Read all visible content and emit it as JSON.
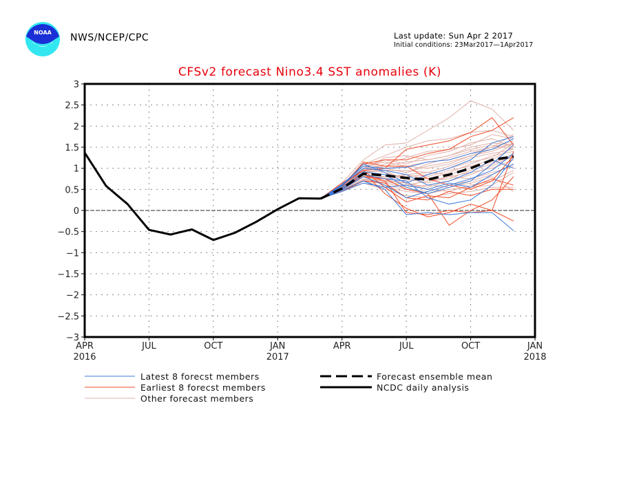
{
  "header": {
    "org": "NWS/NCEP/CPC",
    "logo_text": "NOAA",
    "last_update": "Last update: Sun Apr 2 2017",
    "initial_conditions": "Initial conditions: 23Mar2017—1Apr2017"
  },
  "colors": {
    "title": "#e8000b",
    "latest": "#3a78d8",
    "earliest": "#f04a26",
    "other": "#e0b0a8",
    "mean": "#000000",
    "observed": "#000000"
  },
  "chart_data": {
    "type": "line",
    "title": "CFSv2 forecast Nino3.4 SST anomalies (K)",
    "xlabel": "",
    "ylabel": "",
    "ylim": [
      -3,
      3
    ],
    "yticks": [
      3,
      2.5,
      2,
      1.5,
      1,
      0.5,
      0,
      -0.5,
      -1,
      -1.5,
      -2,
      -2.5,
      -3
    ],
    "ytick_labels": [
      "3",
      "2.5",
      "2",
      "1.5",
      "1",
      "0.5",
      "0",
      "−0.5",
      "−1",
      "−1.5",
      "−2",
      "−2.5",
      "−3"
    ],
    "xlim_months": [
      0,
      21
    ],
    "xticks": [
      {
        "m": 0,
        "label": "APR",
        "year": "2016"
      },
      {
        "m": 3,
        "label": "JUL",
        "year": ""
      },
      {
        "m": 6,
        "label": "OCT",
        "year": ""
      },
      {
        "m": 9,
        "label": "JAN",
        "year": "2017"
      },
      {
        "m": 12,
        "label": "APR",
        "year": ""
      },
      {
        "m": 15,
        "label": "JUL",
        "year": ""
      },
      {
        "m": 18,
        "label": "OCT",
        "year": ""
      },
      {
        "m": 21,
        "label": "JAN",
        "year": "2018"
      }
    ],
    "grid": true,
    "legend_position": "bottom",
    "legend": [
      {
        "key": "latest",
        "label": "Latest 8 forecst members"
      },
      {
        "key": "earliest",
        "label": "Earliest 8 forecst members"
      },
      {
        "key": "other",
        "label": "Other forecast members"
      },
      {
        "key": "mean",
        "label": "Forecast ensemble mean"
      },
      {
        "key": "observed",
        "label": "NCDC daily analysis"
      }
    ],
    "observed": {
      "name": "NCDC daily analysis",
      "x_months": [
        0,
        1,
        2,
        3,
        4,
        5,
        6,
        7,
        8,
        9,
        10,
        11
      ],
      "values": [
        1.37,
        0.58,
        0.15,
        -0.46,
        -0.57,
        -0.45,
        -0.7,
        -0.53,
        -0.27,
        0.03,
        0.29,
        0.28
      ]
    },
    "forecast_x_months": [
      11,
      12,
      13,
      14,
      15,
      16,
      17,
      18,
      19,
      20
    ],
    "ensemble_mean": {
      "name": "Forecast ensemble mean",
      "values": [
        0.28,
        0.52,
        0.87,
        0.83,
        0.77,
        0.73,
        0.85,
        1.0,
        1.2,
        1.28
      ]
    },
    "members": {
      "latest": [
        [
          0.28,
          0.62,
          1.05,
          1.0,
          1.02,
          1.15,
          1.2,
          1.35,
          1.45,
          1.7
        ],
        [
          0.28,
          0.55,
          0.92,
          0.85,
          0.55,
          0.4,
          0.55,
          0.7,
          1.1,
          1.55
        ],
        [
          0.28,
          0.5,
          0.8,
          0.6,
          0.3,
          0.45,
          0.6,
          0.75,
          0.95,
          1.35
        ],
        [
          0.28,
          0.48,
          0.7,
          0.5,
          -0.1,
          -0.05,
          -0.1,
          -0.05,
          -0.05,
          -0.48
        ],
        [
          0.28,
          0.6,
          1.0,
          0.95,
          0.85,
          0.6,
          0.7,
          0.9,
          1.2,
          1.0
        ],
        [
          0.28,
          0.52,
          0.85,
          0.75,
          0.7,
          0.3,
          0.15,
          0.25,
          0.6,
          1.25
        ],
        [
          0.28,
          0.58,
          1.1,
          0.9,
          0.65,
          0.85,
          1.0,
          1.2,
          1.6,
          1.75
        ],
        [
          0.28,
          0.45,
          0.65,
          0.55,
          0.6,
          0.5,
          0.65,
          0.55,
          0.85,
          1.1
        ]
      ],
      "earliest": [
        [
          0.28,
          0.6,
          0.95,
          1.0,
          1.45,
          1.55,
          1.65,
          1.85,
          2.2,
          1.55
        ],
        [
          0.28,
          0.55,
          1.15,
          1.05,
          1.05,
          0.75,
          0.6,
          0.5,
          0.7,
          1.3
        ],
        [
          0.28,
          0.5,
          0.9,
          0.4,
          0.05,
          -0.15,
          -0.05,
          0.15,
          0.0,
          -0.25
        ],
        [
          0.28,
          0.65,
          0.95,
          0.55,
          0.2,
          0.35,
          0.3,
          0.55,
          0.75,
          0.6
        ],
        [
          0.28,
          0.52,
          0.8,
          0.75,
          0.5,
          0.4,
          -0.35,
          0.0,
          0.25,
          0.8
        ],
        [
          0.28,
          0.58,
          1.1,
          1.2,
          1.2,
          1.35,
          1.45,
          1.75,
          1.9,
          2.2
        ],
        [
          0.28,
          0.45,
          0.7,
          0.65,
          0.3,
          0.25,
          0.45,
          0.35,
          0.5,
          0.5
        ],
        [
          0.28,
          0.5,
          0.85,
          0.7,
          -0.05,
          -0.1,
          0.0,
          -0.05,
          0.0,
          1.4
        ]
      ],
      "other": [
        [
          0.28,
          0.65,
          1.2,
          1.55,
          1.6,
          1.9,
          2.2,
          2.6,
          2.4,
          1.9
        ],
        [
          0.28,
          0.6,
          1.1,
          1.3,
          1.5,
          1.65,
          1.7,
          1.85,
          1.9,
          1.75
        ],
        [
          0.28,
          0.55,
          1.0,
          1.2,
          1.1,
          1.3,
          1.4,
          1.6,
          1.7,
          1.5
        ],
        [
          0.28,
          0.5,
          0.9,
          1.0,
          0.9,
          1.1,
          1.25,
          1.4,
          1.5,
          1.65
        ],
        [
          0.28,
          0.58,
          1.05,
          0.95,
          0.95,
          0.9,
          1.05,
          1.25,
          1.35,
          1.45
        ],
        [
          0.28,
          0.52,
          0.85,
          0.8,
          0.85,
          0.75,
          0.9,
          1.1,
          1.3,
          1.4
        ],
        [
          0.28,
          0.48,
          0.8,
          0.7,
          0.65,
          0.55,
          0.7,
          0.85,
          1.05,
          1.3
        ],
        [
          0.28,
          0.55,
          0.95,
          0.9,
          0.75,
          0.65,
          0.8,
          0.9,
          1.0,
          1.2
        ],
        [
          0.28,
          0.45,
          0.75,
          0.6,
          0.5,
          0.45,
          0.6,
          0.7,
          0.85,
          1.1
        ],
        [
          0.28,
          0.5,
          0.7,
          0.55,
          0.45,
          0.4,
          0.5,
          0.55,
          0.6,
          0.9
        ],
        [
          0.28,
          0.47,
          0.65,
          0.5,
          0.35,
          0.3,
          0.4,
          0.45,
          0.55,
          0.55
        ],
        [
          0.28,
          0.53,
          0.9,
          0.85,
          0.8,
          0.85,
          1.0,
          1.15,
          1.25,
          1.6
        ],
        [
          0.28,
          0.6,
          1.0,
          1.05,
          1.15,
          1.2,
          1.3,
          1.5,
          1.6,
          1.55
        ],
        [
          0.28,
          0.57,
          0.95,
          1.1,
          1.25,
          1.4,
          1.45,
          1.55,
          1.8,
          1.7
        ],
        [
          0.28,
          0.5,
          0.8,
          0.75,
          0.6,
          0.7,
          0.75,
          0.95,
          1.1,
          1.35
        ],
        [
          0.28,
          0.45,
          0.7,
          0.65,
          0.55,
          0.6,
          0.55,
          0.65,
          0.8,
          0.45
        ],
        [
          0.28,
          0.62,
          1.05,
          1.15,
          1.05,
          1.0,
          1.1,
          1.3,
          1.45,
          1.6
        ],
        [
          0.28,
          0.55,
          0.9,
          0.95,
          0.7,
          0.8,
          0.95,
          1.05,
          1.2,
          1.5
        ],
        [
          0.28,
          0.48,
          0.75,
          0.7,
          0.85,
          0.9,
          0.85,
          1.0,
          1.15,
          1.25
        ],
        [
          0.28,
          0.52,
          0.88,
          1.0,
          1.05,
          1.15,
          1.2,
          1.35,
          1.5,
          1.8
        ],
        [
          0.28,
          0.5,
          0.82,
          0.78,
          0.65,
          0.5,
          0.45,
          0.6,
          0.7,
          0.95
        ],
        [
          0.28,
          0.56,
          0.98,
          1.25,
          1.3,
          1.2,
          1.3,
          1.45,
          1.55,
          1.45
        ],
        [
          0.28,
          0.46,
          0.72,
          0.68,
          0.6,
          0.7,
          0.8,
          0.75,
          0.9,
          1.05
        ],
        [
          0.28,
          0.6,
          1.12,
          1.0,
          0.9,
          1.05,
          1.15,
          1.3,
          1.4,
          1.6
        ]
      ]
    }
  }
}
